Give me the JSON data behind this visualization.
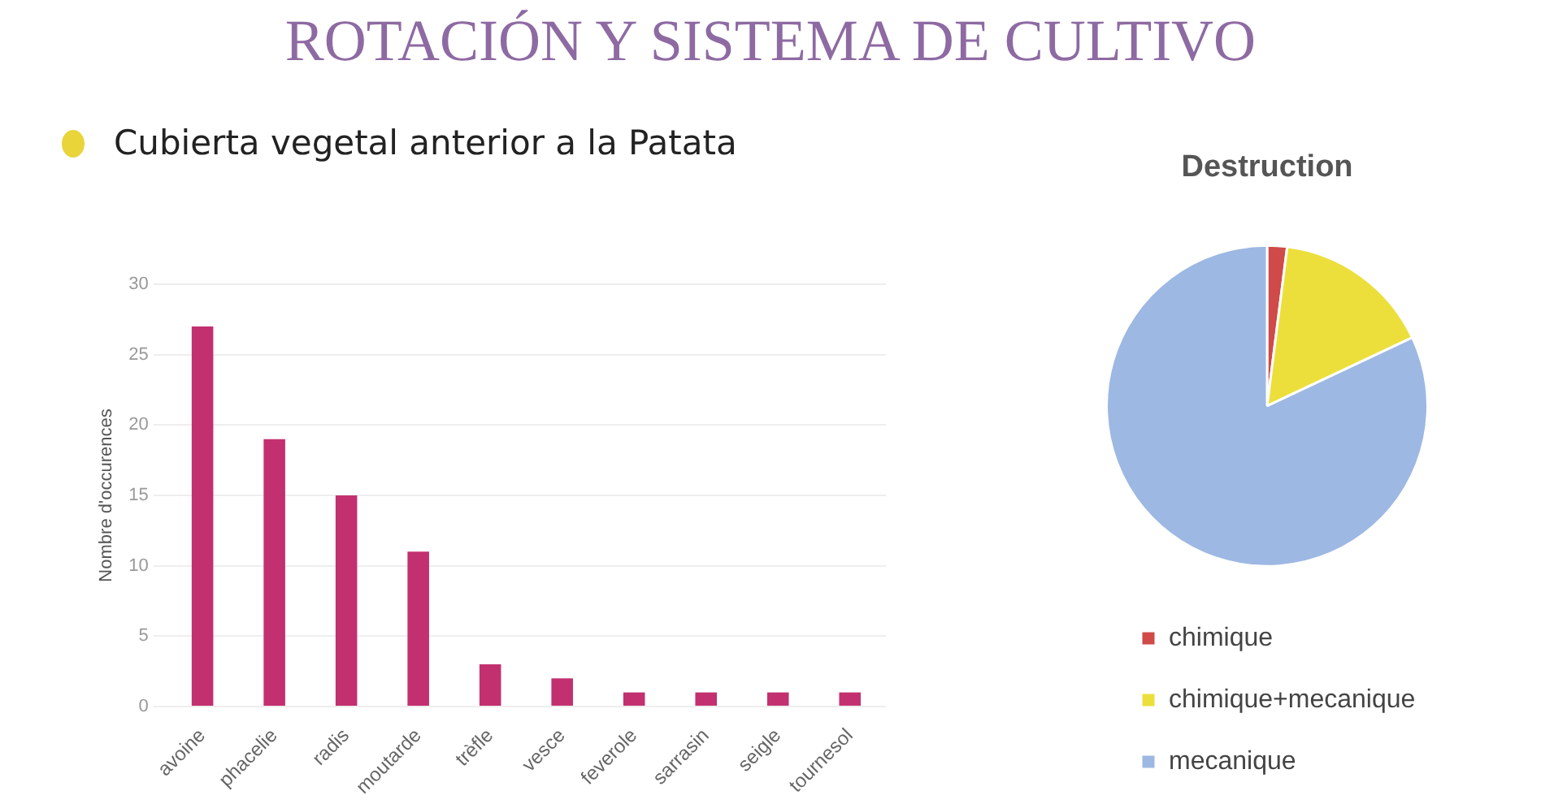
{
  "chart_data": [
    {
      "type": "bar",
      "title": "ROTACIÓN Y SISTEMA DE CULTIVO",
      "subtitle": "Cubierta vegetal anterior a la Patata",
      "ylabel": "Nombre d'occurences",
      "categories": [
        "avoine",
        "phacelie",
        "radis",
        "moutarde",
        "trèfle",
        "vesce",
        "feverole",
        "sarrasin",
        "seigle",
        "tournesol"
      ],
      "values": [
        27,
        19,
        15,
        11,
        3,
        2,
        1,
        1,
        1,
        1
      ],
      "color": "#c2306f",
      "ylim": [
        0,
        30
      ],
      "yticks": [
        0,
        5,
        10,
        15,
        20,
        25,
        30
      ],
      "grid": "y",
      "legend": false
    },
    {
      "type": "pie",
      "title": "Destruction",
      "categories": [
        "chimique",
        "chimique+mecanique",
        "mecanique"
      ],
      "values": [
        2,
        16,
        82
      ],
      "colors": [
        "#cf4a48",
        "#ecdf3c",
        "#9db8e3"
      ],
      "legend": "bottom"
    }
  ]
}
